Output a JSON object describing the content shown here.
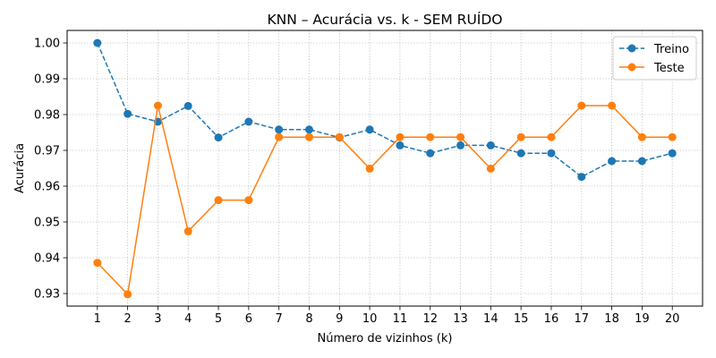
{
  "chart_data": {
    "type": "line",
    "title": "KNN – Acurácia vs. k - SEM RUÍDO",
    "xlabel": "Número de vizinhos (k)",
    "ylabel": "Acurácia",
    "x": [
      1,
      2,
      3,
      4,
      5,
      6,
      7,
      8,
      9,
      10,
      11,
      12,
      13,
      14,
      15,
      16,
      17,
      18,
      19,
      20
    ],
    "x_ticks": [
      "1",
      "2",
      "3",
      "4",
      "5",
      "6",
      "7",
      "8",
      "9",
      "10",
      "11",
      "12",
      "13",
      "14",
      "15",
      "16",
      "17",
      "18",
      "19",
      "20"
    ],
    "y_ticks": [
      "0.93",
      "0.94",
      "0.95",
      "0.96",
      "0.97",
      "0.98",
      "0.99",
      "1.00"
    ],
    "y_tick_values": [
      0.93,
      0.94,
      0.95,
      0.96,
      0.97,
      0.98,
      0.99,
      1.0
    ],
    "xlim": [
      0.0,
      21.0
    ],
    "ylim": [
      0.9265,
      1.0035
    ],
    "grid": true,
    "grid_style": "dotted",
    "legend_position": "top-right",
    "series": [
      {
        "name": "Treino",
        "color": "#1f77b4",
        "line_style": "dashed",
        "marker": "circle",
        "values": [
          1.0,
          0.9802,
          0.978,
          0.9824,
          0.9736,
          0.978,
          0.9758,
          0.9758,
          0.9736,
          0.9758,
          0.9714,
          0.9692,
          0.9714,
          0.9714,
          0.9692,
          0.9692,
          0.9626,
          0.967,
          0.967,
          0.9692
        ]
      },
      {
        "name": "Teste",
        "color": "#ff7f0e",
        "line_style": "solid",
        "marker": "circle",
        "values": [
          0.9386,
          0.9298,
          0.9825,
          0.9474,
          0.9561,
          0.9561,
          0.9737,
          0.9737,
          0.9737,
          0.9649,
          0.9737,
          0.9737,
          0.9737,
          0.9649,
          0.9737,
          0.9737,
          0.9825,
          0.9825,
          0.9737,
          0.9737
        ]
      }
    ]
  }
}
